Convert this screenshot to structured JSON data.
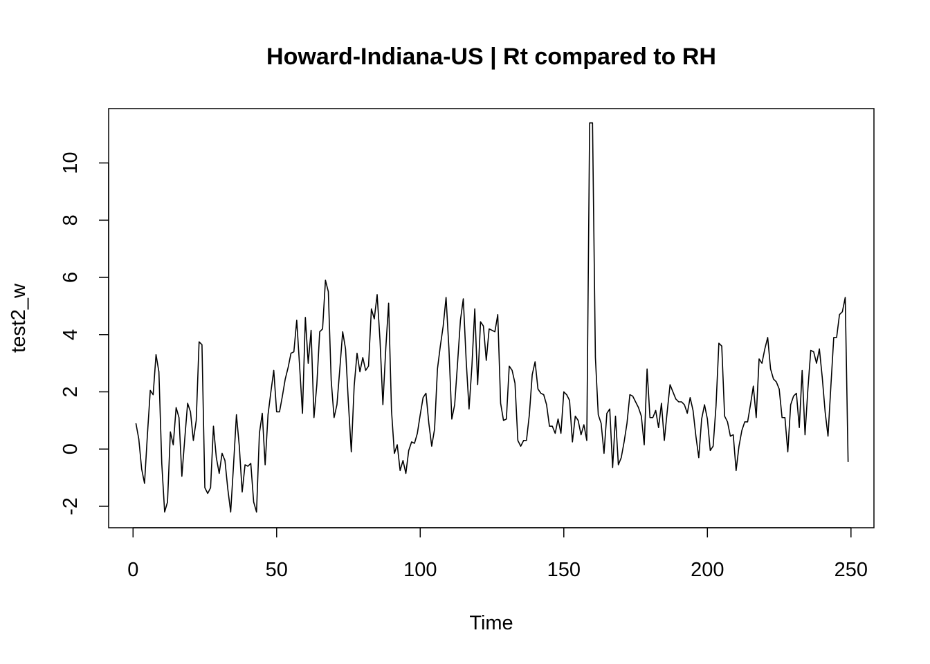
{
  "chart_data": {
    "type": "line",
    "title": "Howard-Indiana-US | Rt compared to RH",
    "xlabel": "Time",
    "ylabel": "test2_w",
    "xlim": [
      -8.5,
      258
    ],
    "ylim": [
      -2.75,
      11.9
    ],
    "x_ticks": [
      0,
      50,
      100,
      150,
      200,
      250
    ],
    "y_ticks": [
      -2,
      0,
      2,
      4,
      6,
      8,
      10
    ],
    "grid": false,
    "legend": "none",
    "line_color": "#000000",
    "series": [
      {
        "x_start": 1,
        "values": [
          0.9,
          0.35,
          -0.7,
          -1.2,
          0.5,
          2.05,
          1.9,
          3.3,
          2.7,
          -0.5,
          -2.2,
          -1.85,
          0.6,
          0.15,
          1.45,
          1.1,
          -0.95,
          0.35,
          1.6,
          1.3,
          0.3,
          1.0,
          3.75,
          3.65,
          -1.35,
          -1.55,
          -1.35,
          0.8,
          -0.3,
          -0.85,
          -0.15,
          -0.4,
          -1.4,
          -2.2,
          -0.55,
          1.2,
          0.1,
          -1.5,
          -0.55,
          -0.6,
          -0.5,
          -1.85,
          -2.2,
          0.55,
          1.25,
          -0.55,
          1.2,
          2.0,
          2.75,
          1.3,
          1.3,
          1.85,
          2.45,
          2.85,
          3.35,
          3.4,
          4.5,
          2.9,
          1.25,
          4.6,
          3.0,
          4.15,
          1.1,
          2.25,
          4.1,
          4.2,
          5.9,
          5.5,
          2.4,
          1.1,
          1.55,
          2.8,
          4.1,
          3.5,
          1.6,
          -0.1,
          2.2,
          3.35,
          2.7,
          3.2,
          2.75,
          2.9,
          4.9,
          4.55,
          5.4,
          3.8,
          1.55,
          3.5,
          5.1,
          1.35,
          -0.15,
          0.15,
          -0.75,
          -0.4,
          -0.85,
          -0.05,
          0.25,
          0.2,
          0.55,
          1.2,
          1.8,
          1.95,
          0.9,
          0.1,
          0.7,
          2.8,
          3.6,
          4.3,
          5.3,
          3.5,
          1.05,
          1.55,
          3.0,
          4.5,
          5.25,
          3.1,
          1.4,
          2.9,
          4.9,
          2.25,
          4.45,
          4.3,
          3.1,
          4.2,
          4.15,
          4.1,
          4.7,
          1.6,
          1.0,
          1.05,
          2.9,
          2.75,
          2.3,
          0.3,
          0.1,
          0.3,
          0.3,
          1.2,
          2.6,
          3.05,
          2.1,
          1.95,
          1.9,
          1.55,
          0.8,
          0.8,
          0.55,
          1.05,
          0.55,
          2.0,
          1.9,
          1.7,
          0.25,
          1.15,
          1.0,
          0.5,
          0.85,
          0.3,
          11.4,
          11.4,
          3.2,
          1.2,
          0.9,
          -0.15,
          1.25,
          1.4,
          -0.65,
          1.15,
          -0.55,
          -0.3,
          0.25,
          0.9,
          1.9,
          1.85,
          1.65,
          1.45,
          1.15,
          0.15,
          2.8,
          1.1,
          1.1,
          1.35,
          0.75,
          1.6,
          0.3,
          1.3,
          2.25,
          2.0,
          1.75,
          1.65,
          1.65,
          1.55,
          1.25,
          1.8,
          1.35,
          0.45,
          -0.3,
          1.05,
          1.55,
          1.05,
          -0.05,
          0.1,
          1.5,
          3.7,
          3.6,
          1.15,
          0.95,
          0.45,
          0.5,
          -0.75,
          0.1,
          0.65,
          0.95,
          0.95,
          1.55,
          2.2,
          1.1,
          3.15,
          3.0,
          3.5,
          3.9,
          2.8,
          2.45,
          2.35,
          2.1,
          1.1,
          1.1,
          -0.1,
          1.55,
          1.85,
          1.95,
          0.75,
          2.75,
          0.5,
          2.1,
          3.45,
          3.4,
          3.0,
          3.5,
          2.5,
          1.3,
          0.45,
          2.2,
          3.9,
          3.9,
          4.7,
          4.8,
          5.3,
          -0.45
        ]
      }
    ]
  }
}
